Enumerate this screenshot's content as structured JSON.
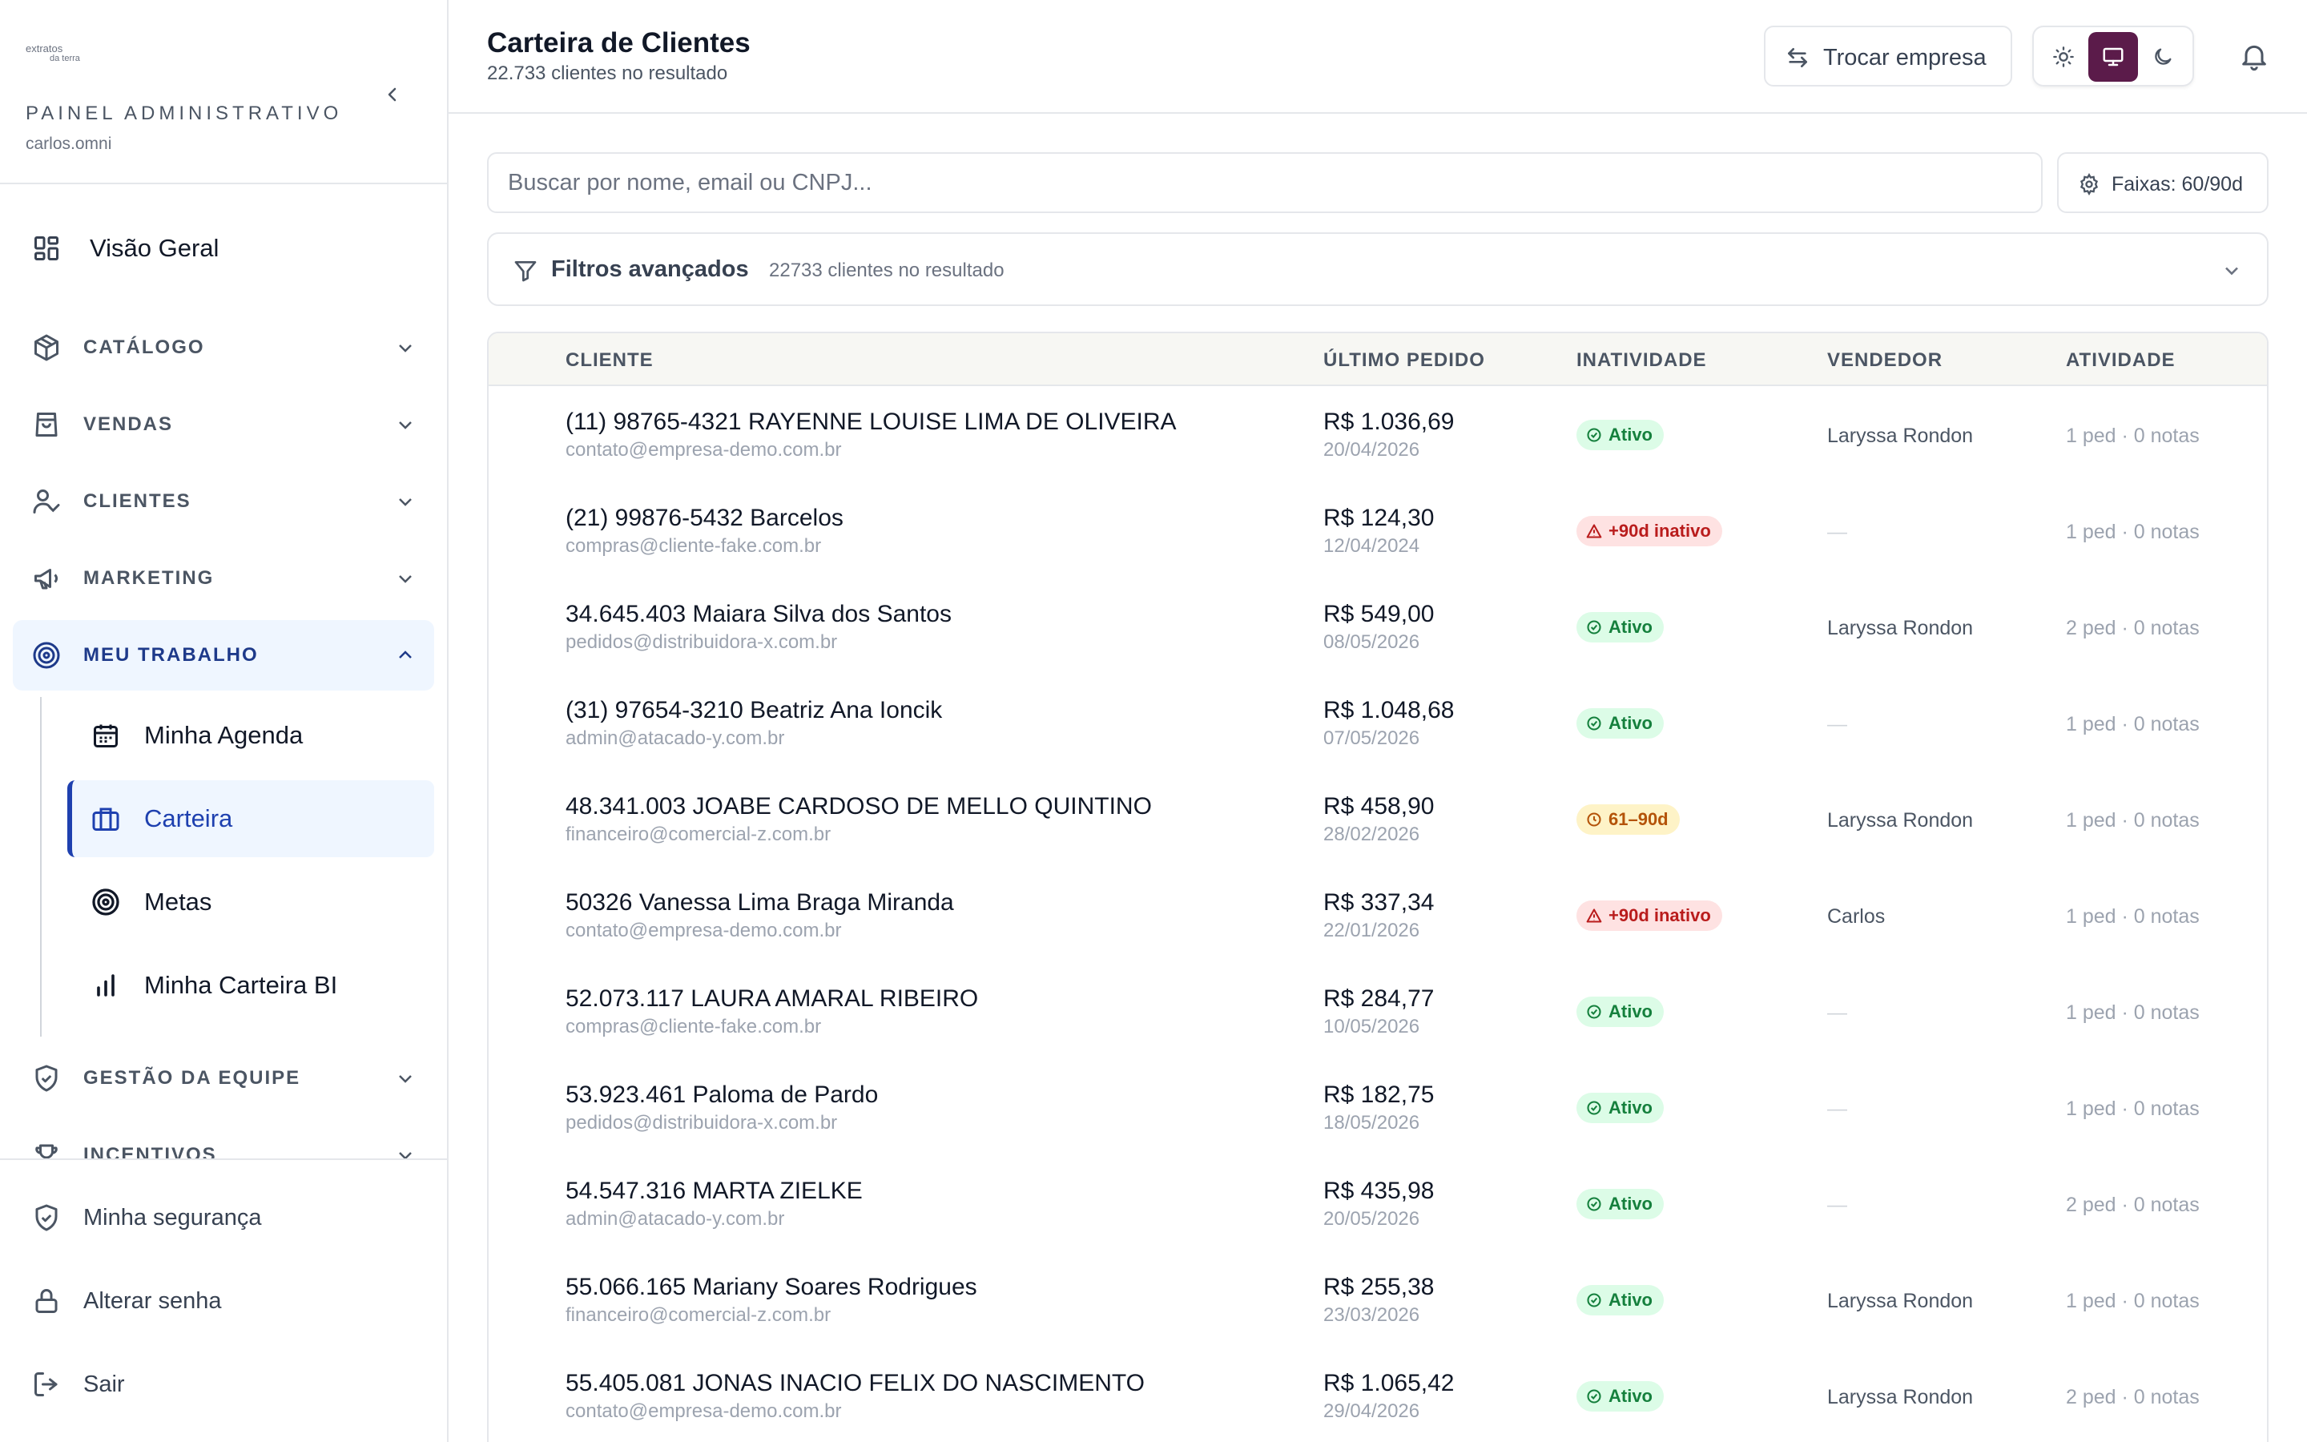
{
  "brand": {
    "line1": "extratos",
    "line2": "da terra"
  },
  "sidebar": {
    "panel_title": "PAINEL ADMINISTRATIVO",
    "user": "carlos.omni",
    "overview": "Visão Geral",
    "sections": [
      {
        "label": "CATÁLOGO",
        "icon": "box-icon"
      },
      {
        "label": "VENDAS",
        "icon": "shopping-bag-icon"
      },
      {
        "label": "CLIENTES",
        "icon": "user-check-icon"
      },
      {
        "label": "MARKETING",
        "icon": "megaphone-icon"
      },
      {
        "label": "MEU TRABALHO",
        "icon": "target-icon"
      },
      {
        "label": "GESTÃO DA EQUIPE",
        "icon": "shield-check-icon"
      },
      {
        "label": "INCENTIVOS",
        "icon": "trophy-icon"
      }
    ],
    "sub_items": [
      {
        "label": "Minha Agenda",
        "icon": "calendar-icon"
      },
      {
        "label": "Carteira",
        "icon": "briefcase-icon"
      },
      {
        "label": "Metas",
        "icon": "target-icon"
      },
      {
        "label": "Minha Carteira BI",
        "icon": "bar-chart-icon"
      }
    ],
    "bottom": [
      {
        "label": "Minha segurança",
        "icon": "shield-check-icon"
      },
      {
        "label": "Alterar senha",
        "icon": "lock-icon"
      },
      {
        "label": "Sair",
        "icon": "log-out-icon"
      }
    ]
  },
  "header": {
    "title": "Carteira de Clientes",
    "subtitle": "22.733 clientes no resultado",
    "swap_label": "Trocar empresa",
    "theme_selected": "system"
  },
  "search": {
    "placeholder": "Buscar por nome, email ou CNPJ..."
  },
  "faixas_label": "Faixas: 60/90d",
  "filters": {
    "label": "Filtros avançados",
    "count": "22733 clientes no resultado"
  },
  "table": {
    "columns": [
      "CLIENTE",
      "ÚLTIMO PEDIDO",
      "INATIVIDADE",
      "VENDEDOR",
      "ATIVIDADE"
    ],
    "rows": [
      {
        "name": "(11) 98765-4321 RAYENNE LOUISE LIMA DE OLIVEIRA",
        "email": "contato@empresa-demo.com.br",
        "value": "R$ 1.036,69",
        "date": "20/04/2026",
        "status": "Ativo",
        "status_type": "ativo",
        "seller": "Laryssa Rondon",
        "activity": "1 ped · 0 notas"
      },
      {
        "name": "(21) 99876-5432 Barcelos",
        "email": "compras@cliente-fake.com.br",
        "value": "R$ 124,30",
        "date": "12/04/2024",
        "status": "+90d inativo",
        "status_type": "inativo",
        "seller": "—",
        "activity": "1 ped · 0 notas"
      },
      {
        "name": "34.645.403 Maiara Silva dos Santos",
        "email": "pedidos@distribuidora-x.com.br",
        "value": "R$ 549,00",
        "date": "08/05/2026",
        "status": "Ativo",
        "status_type": "ativo",
        "seller": "Laryssa Rondon",
        "activity": "2 ped · 0 notas"
      },
      {
        "name": "(31) 97654-3210 Beatriz Ana Ioncik",
        "email": "admin@atacado-y.com.br",
        "value": "R$ 1.048,68",
        "date": "07/05/2026",
        "status": "Ativo",
        "status_type": "ativo",
        "seller": "—",
        "activity": "1 ped · 0 notas"
      },
      {
        "name": "48.341.003 JOABE CARDOSO DE MELLO QUINTINO",
        "email": "financeiro@comercial-z.com.br",
        "value": "R$ 458,90",
        "date": "28/02/2026",
        "status": "61–90d",
        "status_type": "warn",
        "seller": "Laryssa Rondon",
        "activity": "1 ped · 0 notas"
      },
      {
        "name": "50326 Vanessa Lima Braga Miranda",
        "email": "contato@empresa-demo.com.br",
        "value": "R$ 337,34",
        "date": "22/01/2026",
        "status": "+90d inativo",
        "status_type": "inativo",
        "seller": "Carlos",
        "activity": "1 ped · 0 notas"
      },
      {
        "name": "52.073.117 LAURA AMARAL RIBEIRO",
        "email": "compras@cliente-fake.com.br",
        "value": "R$ 284,77",
        "date": "10/05/2026",
        "status": "Ativo",
        "status_type": "ativo",
        "seller": "—",
        "activity": "1 ped · 0 notas"
      },
      {
        "name": "53.923.461 Paloma de Pardo",
        "email": "pedidos@distribuidora-x.com.br",
        "value": "R$ 182,75",
        "date": "18/05/2026",
        "status": "Ativo",
        "status_type": "ativo",
        "seller": "—",
        "activity": "1 ped · 0 notas"
      },
      {
        "name": "54.547.316 MARTA ZIELKE",
        "email": "admin@atacado-y.com.br",
        "value": "R$ 435,98",
        "date": "20/05/2026",
        "status": "Ativo",
        "status_type": "ativo",
        "seller": "—",
        "activity": "2 ped · 0 notas"
      },
      {
        "name": "55.066.165 Mariany Soares Rodrigues",
        "email": "financeiro@comercial-z.com.br",
        "value": "R$ 255,38",
        "date": "23/03/2026",
        "status": "Ativo",
        "status_type": "ativo",
        "seller": "Laryssa Rondon",
        "activity": "1 ped · 0 notas"
      },
      {
        "name": "55.405.081 JONAS INACIO FELIX DO NASCIMENTO",
        "email": "contato@empresa-demo.com.br",
        "value": "R$ 1.065,42",
        "date": "29/04/2026",
        "status": "Ativo",
        "status_type": "ativo",
        "seller": "Laryssa Rondon",
        "activity": "2 ped · 0 notas"
      }
    ]
  },
  "colors": {
    "accent": "#1e40af",
    "theme_active": "#5b1b4a",
    "active_bg": "#eff6ff"
  }
}
